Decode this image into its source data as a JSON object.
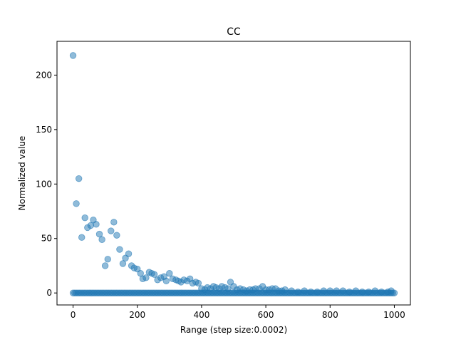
{
  "chart_data": {
    "type": "scatter",
    "title": "CC",
    "xlabel": "Range (step size:0.0002)",
    "ylabel": "Normalized value",
    "xlim": [
      -50,
      1050
    ],
    "ylim": [
      -11,
      231
    ],
    "xticks": [
      0,
      200,
      400,
      600,
      800,
      1000
    ],
    "yticks": [
      0,
      50,
      100,
      150,
      200
    ],
    "grid": false,
    "point_color": "#1f77b4",
    "point_alpha": 0.5,
    "baseline": {
      "x_start": 0,
      "x_end": 1000,
      "x_step": 5,
      "y": 0
    },
    "series": [
      {
        "x": [
          0,
          10,
          18,
          27,
          37,
          45,
          55,
          63,
          72,
          82,
          90,
          100,
          108,
          118,
          127,
          136,
          145,
          155,
          163,
          173,
          182,
          190,
          200,
          210,
          217,
          227,
          237,
          245,
          253,
          263,
          273,
          283,
          290,
          300,
          310,
          320,
          328,
          336,
          345,
          355,
          364,
          372,
          382,
          390,
          400,
          410,
          418,
          428,
          437,
          445,
          455,
          463,
          473,
          482,
          490,
          500,
          510,
          520,
          530,
          540,
          550,
          560,
          568,
          580,
          590,
          600,
          610,
          620,
          630,
          640,
          650,
          660,
          680,
          700,
          720,
          740,
          760,
          780,
          800,
          820,
          840,
          860,
          880,
          900,
          920,
          940,
          960,
          980,
          990
        ],
        "y": [
          218,
          82,
          105,
          51,
          69,
          60,
          62,
          67,
          63,
          54,
          49,
          25,
          31,
          57,
          65,
          53,
          40,
          27,
          32,
          36,
          25,
          23,
          22,
          18,
          13,
          14,
          19,
          18,
          17,
          12,
          14,
          15,
          11,
          18,
          13,
          12,
          11,
          10,
          12,
          11,
          13,
          9,
          10,
          9,
          4,
          3,
          5,
          4,
          6,
          5,
          4,
          6,
          5,
          4,
          10,
          6,
          3,
          4,
          3,
          2,
          3,
          3,
          4,
          4,
          6,
          3,
          3,
          4,
          4,
          2,
          2,
          3,
          2,
          1,
          2,
          1,
          1,
          2,
          2,
          2,
          2,
          1,
          2,
          1,
          1,
          2,
          1,
          1,
          2
        ]
      }
    ]
  }
}
